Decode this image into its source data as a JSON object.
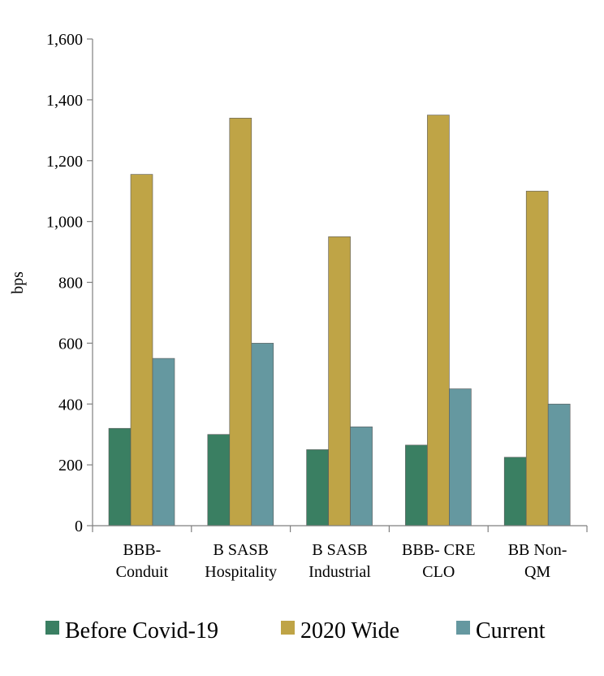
{
  "chart_data": {
    "type": "bar",
    "title": "",
    "xlabel": "",
    "ylabel": "bps",
    "ylim": [
      0,
      1600
    ],
    "yticks": [
      0,
      200,
      400,
      600,
      800,
      1000,
      1200,
      1400,
      1600
    ],
    "ytick_labels": [
      "0",
      "200",
      "400",
      "600",
      "800",
      "1,000",
      "1,200",
      "1,400",
      "1,600"
    ],
    "grid": false,
    "legend_position": "bottom",
    "categories": [
      [
        "BBB-",
        "Conduit"
      ],
      [
        "B SASB",
        "Hospitality"
      ],
      [
        "B SASB",
        "Industrial"
      ],
      [
        "BBB- CRE",
        "CLO"
      ],
      [
        "BB Non-",
        "QM"
      ]
    ],
    "series": [
      {
        "name": "Before Covid-19",
        "color": "#3a7f62",
        "values": [
          320,
          300,
          250,
          265,
          225
        ]
      },
      {
        "name": "2020 Wide",
        "color": "#bfa446",
        "values": [
          1155,
          1340,
          950,
          1350,
          1100
        ]
      },
      {
        "name": "Current",
        "color": "#6598a0",
        "values": [
          550,
          600,
          325,
          450,
          400
        ]
      }
    ]
  }
}
